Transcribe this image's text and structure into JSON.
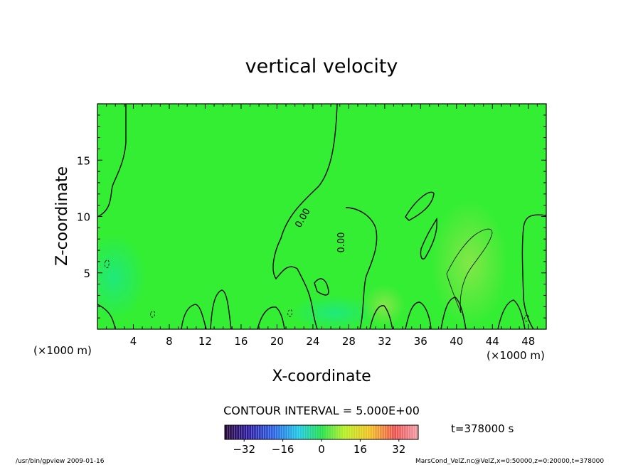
{
  "chart_data": {
    "type": "heatmap",
    "title": "vertical velocity",
    "xlabel": "X-coordinate",
    "ylabel": "Z-coordinate",
    "x_unit_label_left": "(×1000 m)",
    "x_unit_label_right": "(×1000 m)",
    "xlim": [
      0,
      50
    ],
    "ylim": [
      0,
      20
    ],
    "x_ticks": [
      4,
      8,
      12,
      16,
      20,
      24,
      28,
      32,
      36,
      40,
      44,
      48
    ],
    "y_ticks": [
      5,
      10,
      15
    ],
    "contour_interval_label": "CONTOUR INTERVAL = 5.000E+00",
    "contour_labels": [
      {
        "text": "0.00",
        "x": 22.8,
        "z": 9.9,
        "rotation": -60
      },
      {
        "text": "0.00",
        "x": 27.1,
        "z": 7.7,
        "rotation": -90
      }
    ],
    "colorbar": {
      "min": -40,
      "max": 40,
      "tick_values": [
        -32,
        -16,
        0,
        16,
        32
      ],
      "tick_labels": [
        "−32",
        "−16",
        "0",
        "16",
        "32"
      ]
    },
    "time_label": "t=378000 s",
    "field_range_hint": "values mostly near 0, weak positive anomaly around x=40–44, z=2–9",
    "colors": {
      "field_base": "#33ee33",
      "positive_anomaly": "#77ee44",
      "negative_anomaly": "#22e877"
    }
  },
  "footer": {
    "left": "/usr/bin/gpview  2009-01-16",
    "right": "MarsCond_VelZ.nc@VelZ,x=0:50000,z=0:20000,t=378000"
  }
}
